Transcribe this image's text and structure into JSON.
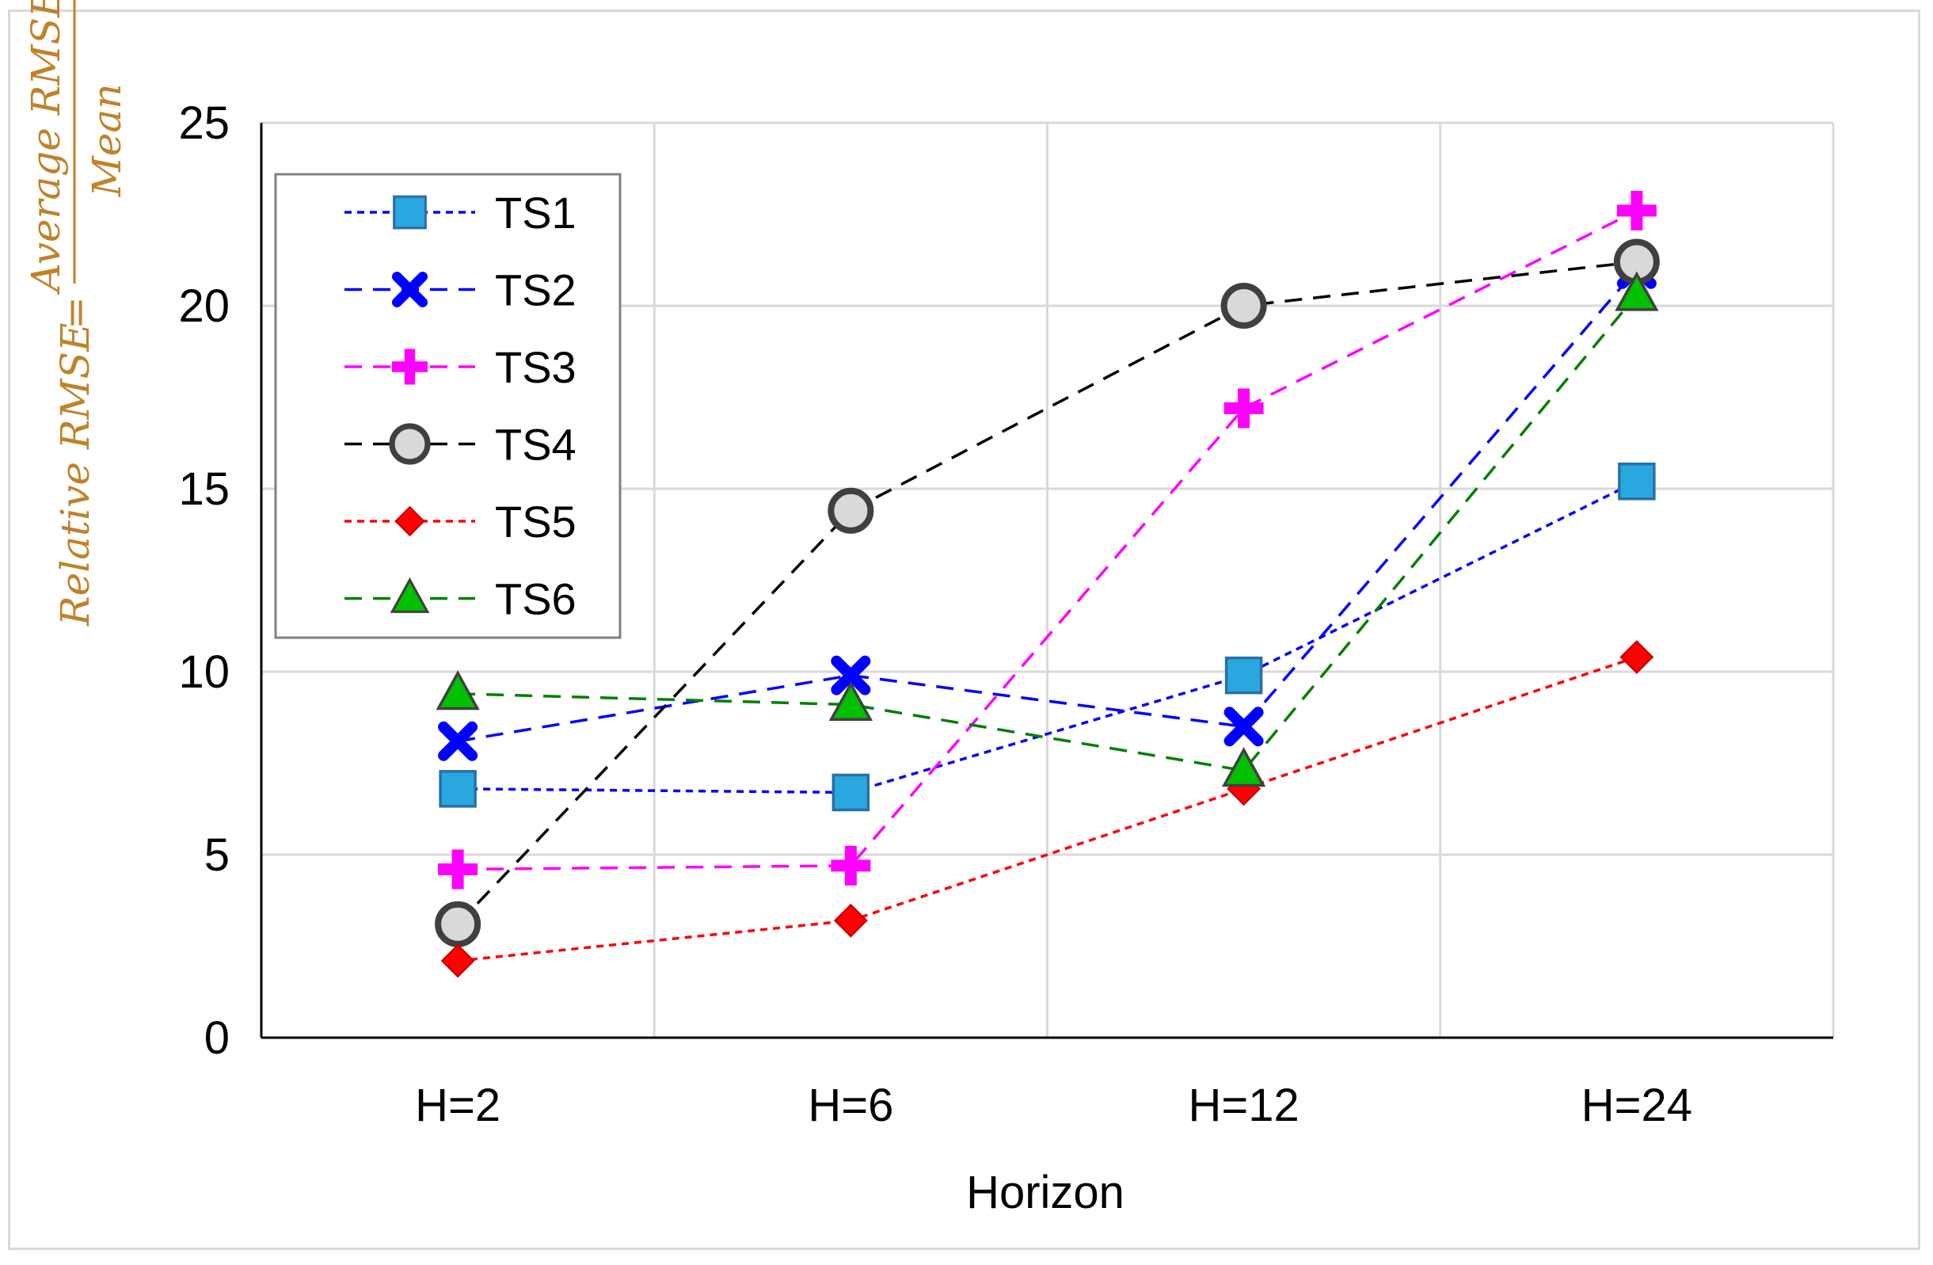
{
  "chart_data": {
    "type": "line",
    "title": "",
    "xlabel": "Horizon",
    "ylabel": {
      "lhs": "Relative RMSE",
      "equals": "=",
      "numerator": "Average RMSE",
      "denominator": "Mean",
      "suffix": "%"
    },
    "categories": [
      "H=2",
      "H=6",
      "H=12",
      "H=24"
    ],
    "ylim": [
      0,
      25
    ],
    "yticks": [
      0,
      5,
      10,
      15,
      20,
      25
    ],
    "grid": true,
    "legend_position": "top-left",
    "series": [
      {
        "name": "TS1",
        "color": "#0000ff",
        "marker": "square",
        "marker_fill": "#29a8e0",
        "dash": "fine",
        "values": [
          6.8,
          6.7,
          9.9,
          15.2
        ]
      },
      {
        "name": "TS2",
        "color": "#0000ff",
        "marker": "x",
        "marker_fill": "#0000ff",
        "dash": "long",
        "values": [
          8.1,
          9.9,
          8.5,
          21.0
        ]
      },
      {
        "name": "TS3",
        "color": "#ff00ff",
        "marker": "plus",
        "marker_fill": "#ff00ff",
        "dash": "long",
        "values": [
          4.6,
          4.7,
          17.2,
          22.6
        ]
      },
      {
        "name": "TS4",
        "color": "#000000",
        "marker": "circle",
        "marker_fill": "#d9d9d9",
        "dash": "long",
        "values": [
          3.1,
          14.4,
          20.0,
          21.2
        ]
      },
      {
        "name": "TS5",
        "color": "#ff0000",
        "marker": "diamond",
        "marker_fill": "#ff0000",
        "dash": "fine",
        "values": [
          2.1,
          3.2,
          6.8,
          10.4
        ]
      },
      {
        "name": "TS6",
        "color": "#008000",
        "marker": "triangle",
        "marker_fill": "#00c000",
        "dash": "long",
        "values": [
          9.4,
          9.1,
          7.3,
          20.3
        ]
      }
    ]
  }
}
